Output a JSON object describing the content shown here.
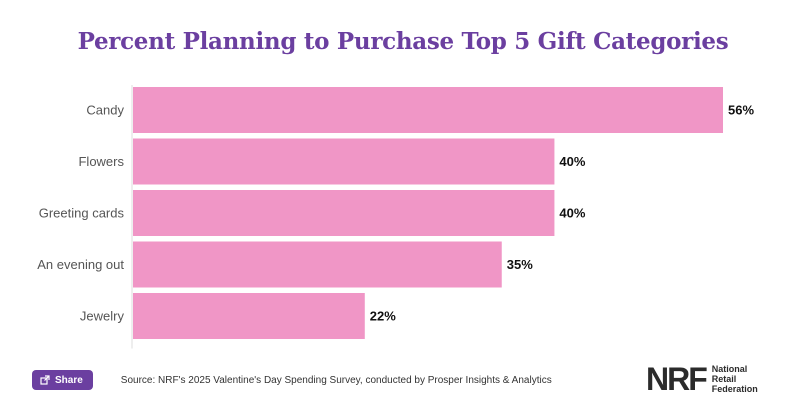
{
  "chart_data": {
    "type": "bar",
    "orientation": "horizontal",
    "title": "Percent Planning to Purchase Top 5 Gift Categories",
    "categories": [
      "Candy",
      "Flowers",
      "Greeting cards",
      "An evening out",
      "Jewelry"
    ],
    "values": [
      56,
      40,
      40,
      35,
      22
    ],
    "value_labels": [
      "56%",
      "40%",
      "40%",
      "35%",
      "22%"
    ],
    "unit": "%",
    "xlim": [
      0,
      56
    ],
    "grid": false,
    "bar_color": "#f096c6",
    "axis_color": "#dddddd"
  },
  "header": {
    "title_color": "#6b3fa0"
  },
  "footer": {
    "share_label": "Share",
    "source": "Source: NRF's 2025 Valentine's Day Spending Survey, conducted by Prosper Insights & Analytics"
  },
  "logo": {
    "mark": "NRF",
    "line1": "National",
    "line2": "Retail",
    "line3": "Federation"
  }
}
